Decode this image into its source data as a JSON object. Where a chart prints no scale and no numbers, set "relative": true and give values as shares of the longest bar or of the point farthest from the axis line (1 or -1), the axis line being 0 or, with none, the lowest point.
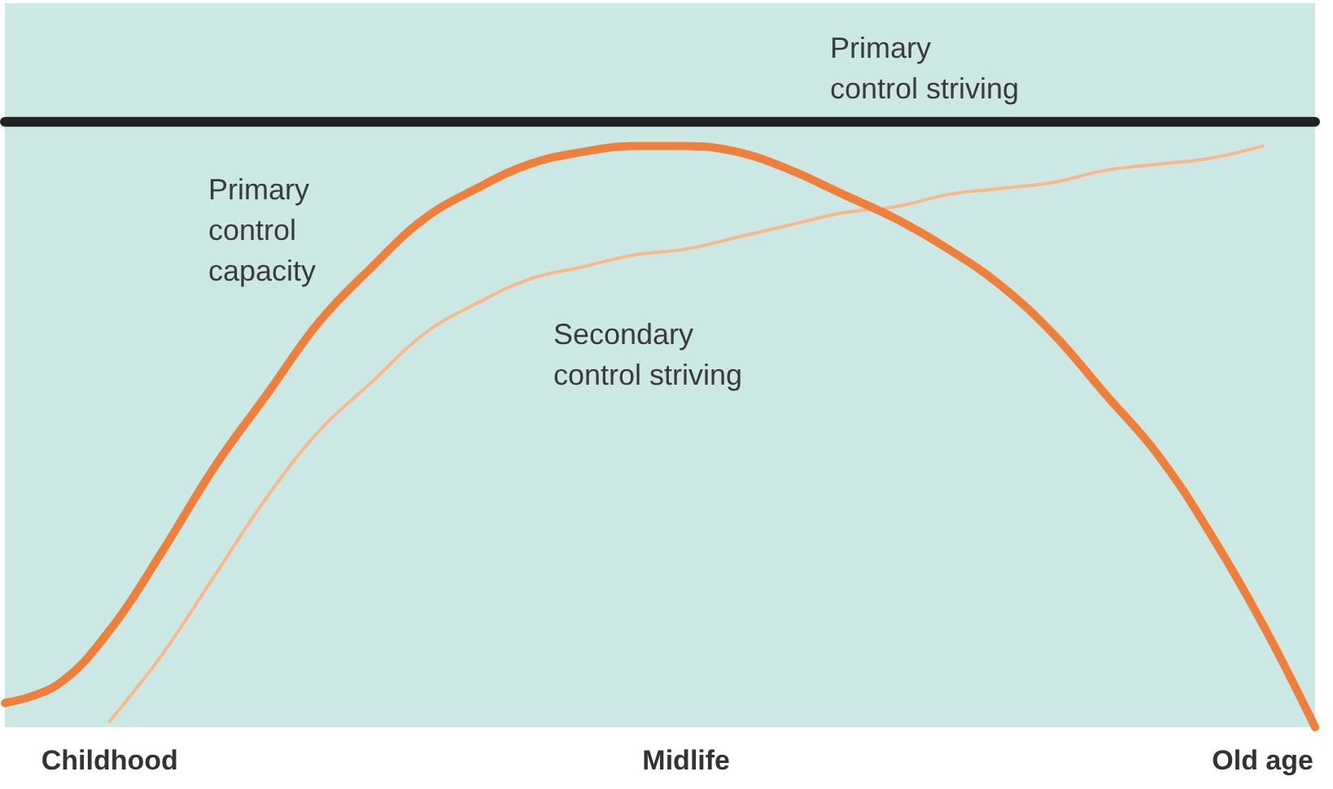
{
  "chart_data": {
    "type": "line",
    "relative": true,
    "categories": [
      null,
      null,
      "Childhood",
      null,
      null,
      null,
      null,
      null,
      null,
      null,
      null,
      null,
      null,
      "Midlife",
      null,
      null,
      null,
      null,
      null,
      null,
      null,
      null,
      null,
      null,
      "Old age",
      null
    ],
    "grid": false,
    "legend": false,
    "marker": "none",
    "line_style": "solid",
    "series": [
      {
        "name": "Primary control capacity",
        "color": "#f07f3c",
        "values": [
          0.04,
          0.07,
          0.16,
          0.29,
          0.43,
          0.55,
          0.67,
          0.76,
          0.84,
          0.89,
          0.93,
          0.95,
          0.96,
          0.96,
          0.95,
          0.92,
          0.88,
          0.84,
          0.79,
          0.73,
          0.65,
          0.55,
          0.45,
          0.32,
          0.17,
          0.0
        ]
      },
      {
        "name": "Secondary control striving",
        "color": "#f9b88a",
        "values": [
          null,
          null,
          0.01,
          0.12,
          0.25,
          0.38,
          0.49,
          0.57,
          0.65,
          0.7,
          0.74,
          0.76,
          0.78,
          0.79,
          0.81,
          0.83,
          0.85,
          0.86,
          0.88,
          0.89,
          0.9,
          0.92,
          0.93,
          0.94,
          0.96,
          null
        ]
      },
      {
        "name": "Primary control striving",
        "color": "#222222",
        "values": [
          1,
          1,
          1,
          1,
          1,
          1,
          1,
          1,
          1,
          1,
          1,
          1,
          1,
          1,
          1,
          1,
          1,
          1,
          1,
          1,
          1,
          1,
          1,
          1,
          1,
          1
        ]
      }
    ]
  }
}
